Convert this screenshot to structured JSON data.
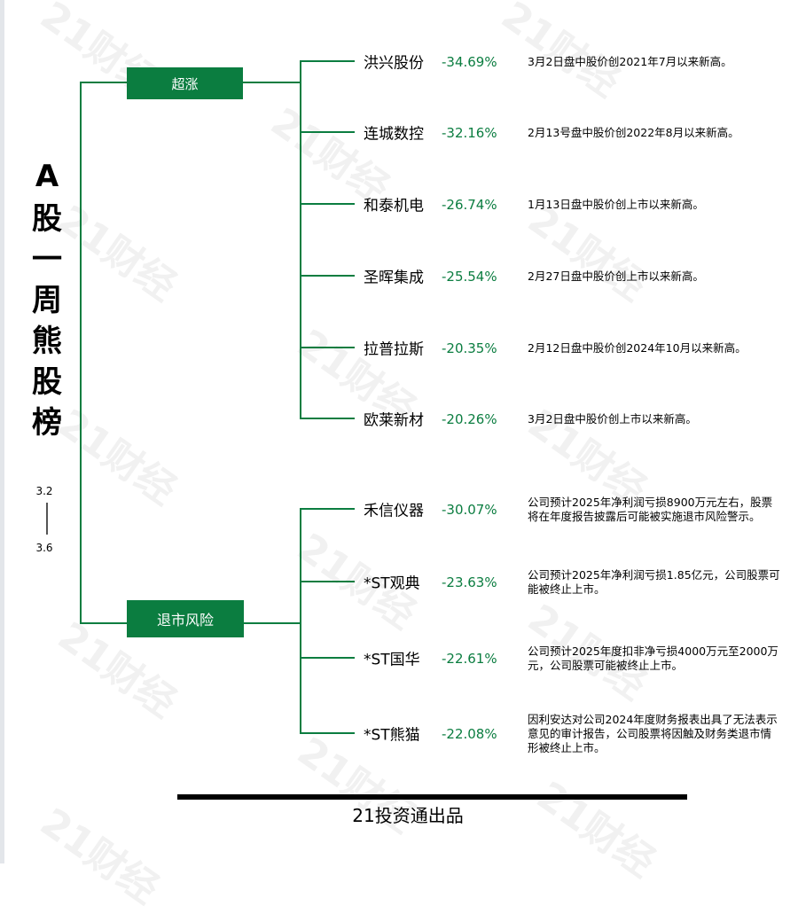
{
  "title": "A股一周熊股榜",
  "title_chars": [
    "A",
    "股",
    "一",
    "周",
    "熊",
    "股",
    "榜"
  ],
  "date_range": {
    "start": "3.2",
    "end": "3.6"
  },
  "watermark": "21财经",
  "accent_color": "#0b7d40",
  "groups": [
    {
      "label": "超涨",
      "items": [
        {
          "name": "洪兴股份",
          "change": "-34.69%",
          "note": "3月2日盘中股价创2021年7月以来新高。"
        },
        {
          "name": "连城数控",
          "change": "-32.16%",
          "note": "2月13号盘中股价创2022年8月以来新高。"
        },
        {
          "name": "和泰机电",
          "change": "-26.74%",
          "note": "1月13日盘中股价创上市以来新高。"
        },
        {
          "name": "圣晖集成",
          "change": "-25.54%",
          "note": "2月27日盘中股价创上市以来新高。"
        },
        {
          "name": "拉普拉斯",
          "change": "-20.35%",
          "note": "2月12日盘中股价创2024年10月以来新高。"
        },
        {
          "name": "欧莱新材",
          "change": "-20.26%",
          "note": "3月2日盘中股价创上市以来新高。"
        }
      ]
    },
    {
      "label": "退市风险",
      "items": [
        {
          "name": "禾信仪器",
          "change": "-30.07%",
          "note": "公司预计2025年净利润亏损8900万元左右，股票将在年度报告披露后可能被实施退市风险警示。"
        },
        {
          "name": "*ST观典",
          "change": "-23.63%",
          "note": "公司预计2025年净利润亏损1.85亿元，公司股票可能被终止上市。"
        },
        {
          "name": "*ST国华",
          "change": "-22.61%",
          "note": "公司预计2025年度扣非净亏损4000万元至2000万元，公司股票可能被终止上市。"
        },
        {
          "name": "*ST熊猫",
          "change": "-22.08%",
          "note": "因利安达对公司2024年度财务报表出具了无法表示意见的审计报告，公司股票将因触及财务类退市情形被终止上市。"
        }
      ]
    }
  ],
  "footer": "21投资通出品"
}
